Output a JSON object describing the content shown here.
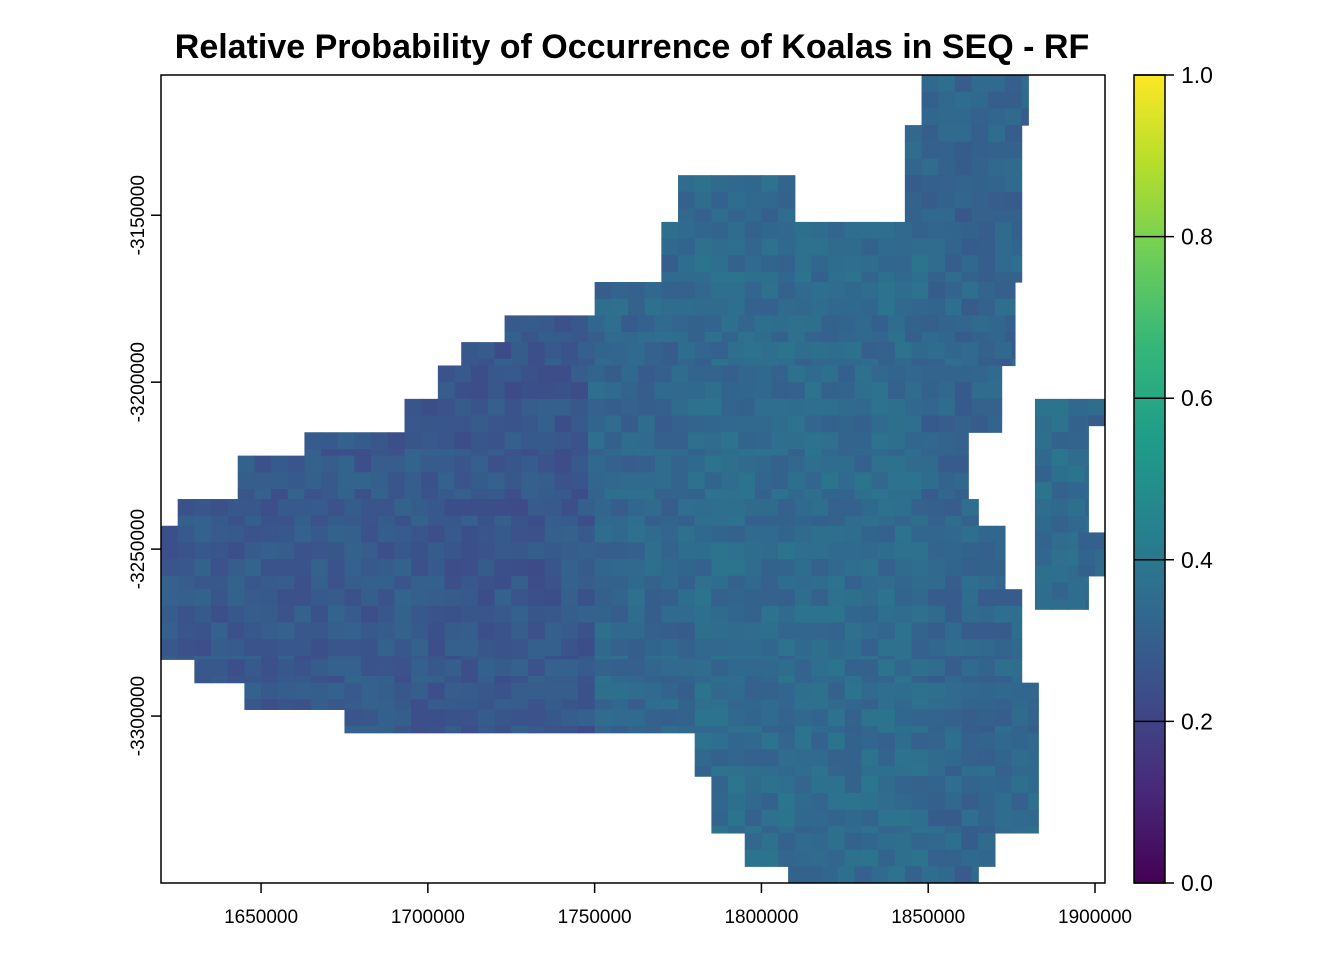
{
  "chart_data": {
    "type": "heatmap",
    "title": "Relative Probability of Occurrence of Koalas in SEQ - RF",
    "xlabel": "",
    "ylabel": "",
    "xlim": [
      1620000,
      1903000
    ],
    "ylim": [
      -3350000,
      -3108000
    ],
    "x_ticks": [
      {
        "value": 1650000,
        "label": "1650000"
      },
      {
        "value": 1700000,
        "label": "1700000"
      },
      {
        "value": 1750000,
        "label": "1750000"
      },
      {
        "value": 1800000,
        "label": "1800000"
      },
      {
        "value": 1850000,
        "label": "1850000"
      },
      {
        "value": 1900000,
        "label": "1900000"
      }
    ],
    "y_ticks": [
      {
        "value": -3150000,
        "label": "-3150000"
      },
      {
        "value": -3200000,
        "label": "-3200000"
      },
      {
        "value": -3250000,
        "label": "-3250000"
      },
      {
        "value": -3300000,
        "label": "-3300000"
      }
    ],
    "colorbar": {
      "palette": "viridis",
      "range": [
        0.0,
        1.0
      ],
      "ticks": [
        {
          "value": 0.0,
          "label": "0.0"
        },
        {
          "value": 0.2,
          "label": "0.2"
        },
        {
          "value": 0.4,
          "label": "0.4"
        },
        {
          "value": 0.6,
          "label": "0.6"
        },
        {
          "value": 0.8,
          "label": "0.8"
        },
        {
          "value": 1.0,
          "label": "1.0"
        }
      ],
      "stops": [
        "#440154",
        "#482878",
        "#3e4a89",
        "#31688e",
        "#26828e",
        "#1f9e89",
        "#35b779",
        "#6ece58",
        "#b5de2b",
        "#fde725"
      ]
    },
    "cell_size_m": 5000,
    "region_rows": [
      {
        "y_top": -3108000,
        "y_bottom": -3123000,
        "x_from": 1848000,
        "x_to": 1880000,
        "value": 0.3
      },
      {
        "y_top": -3123000,
        "y_bottom": -3138000,
        "x_from": 1843000,
        "x_to": 1878000,
        "value": 0.29
      },
      {
        "y_top": -3138000,
        "y_bottom": -3152000,
        "x_from": 1775000,
        "x_to": 1810000,
        "value": 0.3
      },
      {
        "y_top": -3138000,
        "y_bottom": -3152000,
        "x_from": 1843000,
        "x_to": 1878000,
        "value": 0.28
      },
      {
        "y_top": -3152000,
        "y_bottom": -3170000,
        "x_from": 1770000,
        "x_to": 1878000,
        "value": 0.31
      },
      {
        "y_top": -3170000,
        "y_bottom": -3180000,
        "x_from": 1750000,
        "x_to": 1876000,
        "value": 0.31
      },
      {
        "y_top": -3180000,
        "y_bottom": -3188000,
        "x_from": 1723000,
        "x_to": 1876000,
        "value": 0.3
      },
      {
        "y_top": -3188000,
        "y_bottom": -3195000,
        "x_from": 1710000,
        "x_to": 1876000,
        "value": 0.3
      },
      {
        "y_top": -3195000,
        "y_bottom": -3205000,
        "x_from": 1703000,
        "x_to": 1872000,
        "value": 0.3
      },
      {
        "y_top": -3205000,
        "y_bottom": -3215000,
        "x_from": 1693000,
        "x_to": 1872000,
        "value": 0.3
      },
      {
        "y_top": -3215000,
        "y_bottom": -3222000,
        "x_from": 1663000,
        "x_to": 1862000,
        "value": 0.31
      },
      {
        "y_top": -3222000,
        "y_bottom": -3235000,
        "x_from": 1643000,
        "x_to": 1862000,
        "value": 0.31
      },
      {
        "y_top": -3235000,
        "y_bottom": -3243000,
        "x_from": 1625000,
        "x_to": 1865000,
        "value": 0.31
      },
      {
        "y_top": -3243000,
        "y_bottom": -3262000,
        "x_from": 1620000,
        "x_to": 1873000,
        "value": 0.31
      },
      {
        "y_top": -3262000,
        "y_bottom": -3283000,
        "x_from": 1620000,
        "x_to": 1878000,
        "value": 0.31
      },
      {
        "y_top": -3283000,
        "y_bottom": -3290000,
        "x_from": 1630000,
        "x_to": 1878000,
        "value": 0.31
      },
      {
        "y_top": -3290000,
        "y_bottom": -3298000,
        "x_from": 1645000,
        "x_to": 1883000,
        "value": 0.31
      },
      {
        "y_top": -3298000,
        "y_bottom": -3305000,
        "x_from": 1675000,
        "x_to": 1883000,
        "value": 0.31
      },
      {
        "y_top": -3305000,
        "y_bottom": -3318000,
        "x_from": 1780000,
        "x_to": 1883000,
        "value": 0.31
      },
      {
        "y_top": -3318000,
        "y_bottom": -3335000,
        "x_from": 1785000,
        "x_to": 1883000,
        "value": 0.32
      },
      {
        "y_top": -3335000,
        "y_bottom": -3345000,
        "x_from": 1795000,
        "x_to": 1870000,
        "value": 0.31
      },
      {
        "y_top": -3345000,
        "y_bottom": -3350000,
        "x_from": 1808000,
        "x_to": 1865000,
        "value": 0.31
      },
      {
        "y_top": -3205000,
        "y_bottom": -3268000,
        "x_from": 1882000,
        "x_to": 1898000,
        "value": 0.36
      },
      {
        "y_top": -3245000,
        "y_bottom": -3258000,
        "x_from": 1895000,
        "x_to": 1903000,
        "value": 0.3
      },
      {
        "y_top": -3205000,
        "y_bottom": -3213000,
        "x_from": 1898000,
        "x_to": 1903000,
        "value": 0.29
      }
    ],
    "region_trend": [
      {
        "x_from": 1620000,
        "x_to": 1700000,
        "value": 0.25
      },
      {
        "x_from": 1700000,
        "x_to": 1748000,
        "value": 0.23
      },
      {
        "x_from": 1748000,
        "x_to": 1780000,
        "value": 0.35
      },
      {
        "x_from": 1780000,
        "x_to": 1850000,
        "value": 0.38
      },
      {
        "x_from": 1850000,
        "x_to": 1903000,
        "value": 0.34
      }
    ]
  }
}
